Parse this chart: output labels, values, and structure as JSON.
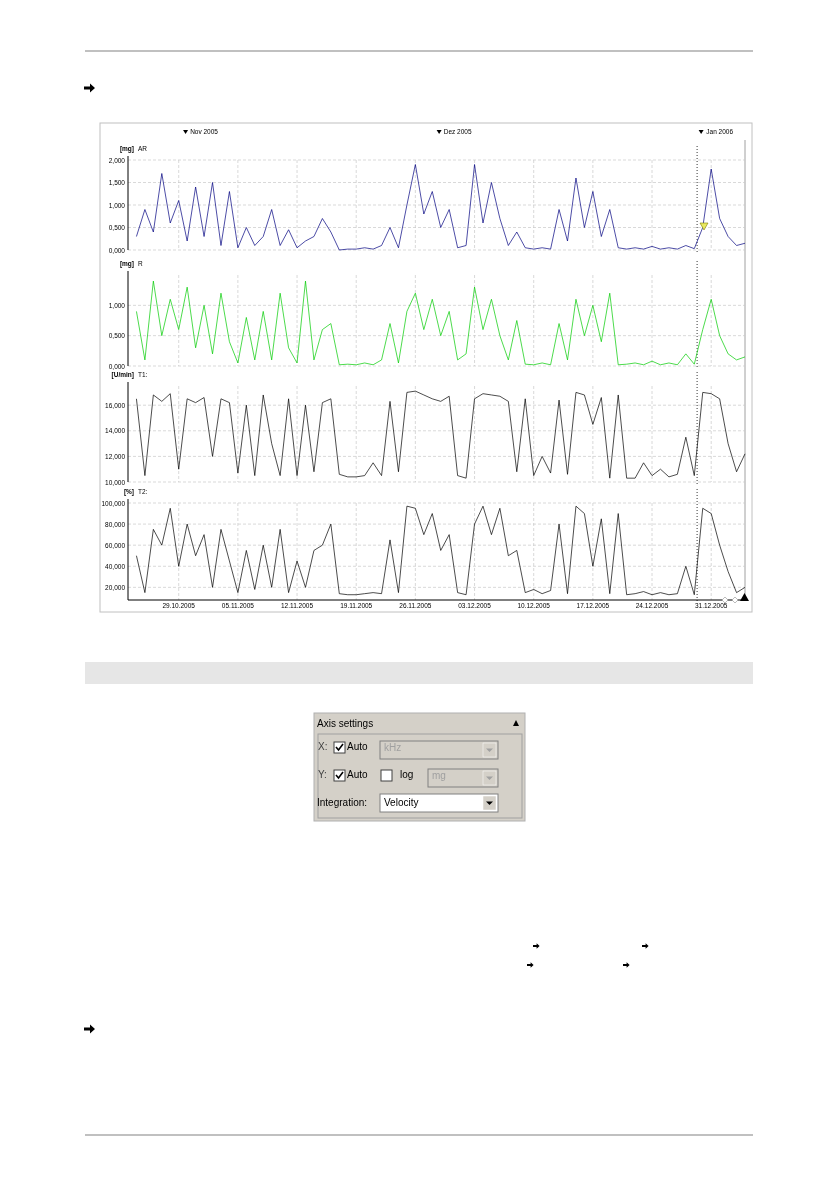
{
  "chart_data": [
    {
      "type": "line",
      "title": "AR",
      "ylabel": "[mg]",
      "tick_labels": "y",
      "grid": true,
      "xlim": [
        "2005-10-23",
        "2006-01-04"
      ],
      "xticks": [
        {
          "value": "2005-10-29",
          "label": null
        },
        {
          "value": "2005-11-05",
          "label": null
        },
        {
          "value": "2005-11-12",
          "label": null
        },
        {
          "value": "2005-11-19",
          "label": null
        },
        {
          "value": "2005-11-26",
          "label": null
        },
        {
          "value": "2005-12-03",
          "label": null
        },
        {
          "value": "2005-12-10",
          "label": null
        },
        {
          "value": "2005-12-17",
          "label": null
        },
        {
          "value": "2005-12-24",
          "label": null
        },
        {
          "value": "2005-12-31",
          "label": null
        }
      ],
      "x2lim": [
        "2005-10-23",
        "2006-01-04"
      ],
      "x2ticks": [
        {
          "value": "2005-11-01",
          "label": "Nov 2005"
        },
        {
          "value": "2005-12-01",
          "label": "Dez 2005"
        },
        {
          "value": "2006-01-01",
          "label": "Jan 2006"
        }
      ],
      "ylim": [
        0,
        2
      ],
      "yticks": [
        {
          "value": 0,
          "label": "0,000"
        },
        {
          "value": 0.5,
          "label": "0,500"
        },
        {
          "value": 1,
          "label": "1,000"
        },
        {
          "value": 1.5,
          "label": "1,500"
        },
        {
          "value": 2,
          "label": "2,000"
        }
      ],
      "ref_lines": [
        {
          "axis": "x",
          "value": "2005-12-29T08:00",
          "color": "#000000",
          "line_style": "dotted"
        }
      ],
      "x": [
        "2005-10-24",
        "2005-10-25",
        "2005-10-26",
        "2005-10-27",
        "2005-10-28",
        "2005-10-29",
        "2005-10-30",
        "2005-10-31",
        "2005-11-01",
        "2005-11-02",
        "2005-11-03",
        "2005-11-04",
        "2005-11-05",
        "2005-11-06",
        "2005-11-07",
        "2005-11-08",
        "2005-11-09",
        "2005-11-10",
        "2005-11-11",
        "2005-11-12",
        "2005-11-13",
        "2005-11-14",
        "2005-11-15",
        "2005-11-16",
        "2005-11-17",
        "2005-11-18",
        "2005-11-19",
        "2005-11-20",
        "2005-11-21",
        "2005-11-22",
        "2005-11-23",
        "2005-11-24",
        "2005-11-25",
        "2005-11-26",
        "2005-11-27",
        "2005-11-28",
        "2005-11-29",
        "2005-11-30",
        "2005-12-01",
        "2005-12-02",
        "2005-12-03",
        "2005-12-04",
        "2005-12-05",
        "2005-12-06",
        "2005-12-07",
        "2005-12-08",
        "2005-12-09",
        "2005-12-10",
        "2005-12-11",
        "2005-12-12",
        "2005-12-13",
        "2005-12-14",
        "2005-12-15",
        "2005-12-16",
        "2005-12-17",
        "2005-12-18",
        "2005-12-19",
        "2005-12-20",
        "2005-12-21",
        "2005-12-22",
        "2005-12-23",
        "2005-12-24",
        "2005-12-25",
        "2005-12-26",
        "2005-12-27",
        "2005-12-28",
        "2005-12-29",
        "2005-12-30",
        "2005-12-31",
        "2006-01-01",
        "2006-01-02",
        "2006-01-03",
        "2006-01-04"
      ],
      "series": [
        {
          "color": "#000080",
          "values": [
            0.3,
            0.9,
            0.4,
            1.7,
            0.6,
            1.1,
            0.2,
            1.4,
            0.3,
            1.5,
            0.1,
            1.3,
            0.05,
            0.5,
            0.1,
            0.3,
            0.9,
            0.1,
            0.45,
            0.05,
            0.2,
            0.3,
            0.7,
            0.4,
            0.0,
            0.02,
            0.02,
            0.05,
            0.02,
            0.1,
            0.5,
            0.05,
            1.0,
            1.9,
            0.8,
            1.3,
            0.5,
            0.9,
            0.05,
            0.1,
            1.9,
            0.6,
            1.5,
            0.7,
            0.1,
            0.4,
            0.05,
            0.02,
            0.05,
            0.02,
            0.9,
            0.2,
            1.6,
            0.5,
            1.3,
            0.3,
            0.9,
            0.05,
            0.02,
            0.05,
            0.02,
            0.08,
            0.02,
            0.05,
            0.02,
            0.1,
            0.03,
            0.5,
            1.8,
            0.7,
            0.3,
            0.1,
            0.15
          ]
        }
      ]
    },
    {
      "type": "line",
      "title": "R",
      "ylabel": "[mg]",
      "tick_labels": "y",
      "grid": true,
      "xlim": [
        "2005-10-23",
        "2006-01-04"
      ],
      "xticks": [
        {
          "value": "2005-10-29",
          "label": null
        },
        {
          "value": "2005-11-05",
          "label": null
        },
        {
          "value": "2005-11-12",
          "label": null
        },
        {
          "value": "2005-11-19",
          "label": null
        },
        {
          "value": "2005-11-26",
          "label": null
        },
        {
          "value": "2005-12-03",
          "label": null
        },
        {
          "value": "2005-12-10",
          "label": null
        },
        {
          "value": "2005-12-17",
          "label": null
        },
        {
          "value": "2005-12-24",
          "label": null
        },
        {
          "value": "2005-12-31",
          "label": null
        }
      ],
      "ylim": [
        0,
        1.5
      ],
      "yticks": [
        {
          "value": 0,
          "label": "0,000"
        },
        {
          "value": 0.5,
          "label": "0,500"
        },
        {
          "value": 1,
          "label": "1,000"
        }
      ],
      "ref_lines": [
        {
          "axis": "x",
          "value": "2005-12-29T08:00",
          "color": "#000000",
          "line_style": "dotted"
        }
      ],
      "x": [
        "2005-10-24",
        "2005-10-25",
        "2005-10-26",
        "2005-10-27",
        "2005-10-28",
        "2005-10-29",
        "2005-10-30",
        "2005-10-31",
        "2005-11-01",
        "2005-11-02",
        "2005-11-03",
        "2005-11-04",
        "2005-11-05",
        "2005-11-06",
        "2005-11-07",
        "2005-11-08",
        "2005-11-09",
        "2005-11-10",
        "2005-11-11",
        "2005-11-12",
        "2005-11-13",
        "2005-11-14",
        "2005-11-15",
        "2005-11-16",
        "2005-11-17",
        "2005-11-18",
        "2005-11-19",
        "2005-11-20",
        "2005-11-21",
        "2005-11-22",
        "2005-11-23",
        "2005-11-24",
        "2005-11-25",
        "2005-11-26",
        "2005-11-27",
        "2005-11-28",
        "2005-11-29",
        "2005-11-30",
        "2005-12-01",
        "2005-12-02",
        "2005-12-03",
        "2005-12-04",
        "2005-12-05",
        "2005-12-06",
        "2005-12-07",
        "2005-12-08",
        "2005-12-09",
        "2005-12-10",
        "2005-12-11",
        "2005-12-12",
        "2005-12-13",
        "2005-12-14",
        "2005-12-15",
        "2005-12-16",
        "2005-12-17",
        "2005-12-18",
        "2005-12-19",
        "2005-12-20",
        "2005-12-21",
        "2005-12-22",
        "2005-12-23",
        "2005-12-24",
        "2005-12-25",
        "2005-12-26",
        "2005-12-27",
        "2005-12-28",
        "2005-12-29",
        "2005-12-30",
        "2005-12-31",
        "2006-01-01",
        "2006-01-02",
        "2006-01-03",
        "2006-01-04"
      ],
      "series": [
        {
          "color": "#00cc00",
          "values": [
            0.9,
            0.1,
            1.4,
            0.5,
            1.1,
            0.6,
            1.3,
            0.3,
            1.0,
            0.2,
            1.2,
            0.4,
            0.05,
            0.8,
            0.1,
            0.9,
            0.1,
            1.2,
            0.3,
            0.05,
            1.4,
            0.1,
            0.6,
            0.7,
            0.02,
            0.03,
            0.02,
            0.05,
            0.02,
            0.1,
            0.7,
            0.05,
            0.9,
            1.2,
            0.6,
            1.1,
            0.5,
            0.9,
            0.1,
            0.2,
            1.3,
            0.6,
            1.1,
            0.5,
            0.1,
            0.75,
            0.03,
            0.02,
            0.05,
            0.02,
            0.7,
            0.1,
            1.1,
            0.5,
            1.0,
            0.4,
            1.2,
            0.02,
            0.03,
            0.05,
            0.02,
            0.08,
            0.02,
            0.05,
            0.02,
            0.2,
            0.03,
            0.6,
            1.1,
            0.5,
            0.2,
            0.1,
            0.15
          ]
        }
      ]
    },
    {
      "type": "line",
      "title": "T1:",
      "ylabel": "[U/min]",
      "tick_labels": "y",
      "grid": true,
      "xlim": [
        "2005-10-23",
        "2006-01-04"
      ],
      "xticks": [
        {
          "value": "2005-10-29",
          "label": null
        },
        {
          "value": "2005-11-05",
          "label": null
        },
        {
          "value": "2005-11-12",
          "label": null
        },
        {
          "value": "2005-11-19",
          "label": null
        },
        {
          "value": "2005-11-26",
          "label": null
        },
        {
          "value": "2005-12-03",
          "label": null
        },
        {
          "value": "2005-12-10",
          "label": null
        },
        {
          "value": "2005-12-17",
          "label": null
        },
        {
          "value": "2005-12-24",
          "label": null
        },
        {
          "value": "2005-12-31",
          "label": null
        }
      ],
      "ylim": [
        10,
        17.5
      ],
      "yticks": [
        {
          "value": 10,
          "label": "10,000"
        },
        {
          "value": 12,
          "label": "12,000"
        },
        {
          "value": 14,
          "label": "14,000"
        },
        {
          "value": 16,
          "label": "16,000"
        }
      ],
      "ref_lines": [
        {
          "axis": "x",
          "value": "2005-12-29T08:00",
          "color": "#000000",
          "line_style": "dotted"
        }
      ],
      "x": [
        "2005-10-24",
        "2005-10-25",
        "2005-10-26",
        "2005-10-27",
        "2005-10-28",
        "2005-10-29",
        "2005-10-30",
        "2005-10-31",
        "2005-11-01",
        "2005-11-02",
        "2005-11-03",
        "2005-11-04",
        "2005-11-05",
        "2005-11-06",
        "2005-11-07",
        "2005-11-08",
        "2005-11-09",
        "2005-11-10",
        "2005-11-11",
        "2005-11-12",
        "2005-11-13",
        "2005-11-14",
        "2005-11-15",
        "2005-11-16",
        "2005-11-17",
        "2005-11-18",
        "2005-11-19",
        "2005-11-20",
        "2005-11-21",
        "2005-11-22",
        "2005-11-23",
        "2005-11-24",
        "2005-11-25",
        "2005-11-26",
        "2005-11-27",
        "2005-11-28",
        "2005-11-29",
        "2005-11-30",
        "2005-12-01",
        "2005-12-02",
        "2005-12-03",
        "2005-12-04",
        "2005-12-05",
        "2005-12-06",
        "2005-12-07",
        "2005-12-08",
        "2005-12-09",
        "2005-12-10",
        "2005-12-11",
        "2005-12-12",
        "2005-12-13",
        "2005-12-14",
        "2005-12-15",
        "2005-12-16",
        "2005-12-17",
        "2005-12-18",
        "2005-12-19",
        "2005-12-20",
        "2005-12-21",
        "2005-12-22",
        "2005-12-23",
        "2005-12-24",
        "2005-12-25",
        "2005-12-26",
        "2005-12-27",
        "2005-12-28",
        "2005-12-29",
        "2005-12-30",
        "2005-12-31",
        "2006-01-01",
        "2006-01-02",
        "2006-01-03",
        "2006-01-04"
      ],
      "series": [
        {
          "color": "#000000",
          "values": [
            16.5,
            10.5,
            16.8,
            16.3,
            16.9,
            11,
            16.5,
            16.2,
            16.6,
            12,
            16.5,
            16.2,
            10.7,
            16,
            10.5,
            16.8,
            13,
            10.5,
            16.5,
            10.5,
            16,
            10.8,
            16.2,
            16.5,
            10.6,
            10.4,
            10.4,
            10.5,
            11.5,
            10.5,
            16.3,
            10.8,
            17,
            17.1,
            16.8,
            16.5,
            16.3,
            16.7,
            10.5,
            10.3,
            16.5,
            16.9,
            16.8,
            16.7,
            16.3,
            10.8,
            16.5,
            10.5,
            12,
            10.7,
            16.4,
            10.6,
            17,
            16.8,
            14.5,
            16.6,
            10.3,
            16.8,
            10.3,
            10.3,
            11.5,
            10.5,
            11,
            10.4,
            10.6,
            13.5,
            10.5,
            17,
            16.9,
            16.5,
            13,
            10.8,
            12.2
          ]
        }
      ]
    },
    {
      "type": "line",
      "title": "T2:",
      "ylabel": "[%]",
      "grid": true,
      "xlim": [
        "2005-10-23",
        "2006-01-04"
      ],
      "xticks": [
        {
          "value": "2005-10-29",
          "label": "29.10.2005"
        },
        {
          "value": "2005-11-05",
          "label": "05.11.2005"
        },
        {
          "value": "2005-11-12",
          "label": "12.11.2005"
        },
        {
          "value": "2005-11-19",
          "label": "19.11.2005"
        },
        {
          "value": "2005-11-26",
          "label": "26.11.2005"
        },
        {
          "value": "2005-12-03",
          "label": "03.12.2005"
        },
        {
          "value": "2005-12-10",
          "label": "10.12.2005"
        },
        {
          "value": "2005-12-17",
          "label": "17.12.2005"
        },
        {
          "value": "2005-12-24",
          "label": "24.12.2005"
        },
        {
          "value": "2005-12-31",
          "label": "31.12.2005"
        }
      ],
      "ylim": [
        8,
        100
      ],
      "yticks": [
        {
          "value": 20,
          "label": "20,000"
        },
        {
          "value": 40,
          "label": "40,000"
        },
        {
          "value": 60,
          "label": "60,000"
        },
        {
          "value": 80,
          "label": "80,000"
        },
        {
          "value": 100,
          "label": "100,000"
        }
      ],
      "ref_lines": [
        {
          "axis": "x",
          "value": "2005-12-29T08:00",
          "color": "#000000",
          "line_style": "dotted"
        }
      ],
      "x": [
        "2005-10-24",
        "2005-10-25",
        "2005-10-26",
        "2005-10-27",
        "2005-10-28",
        "2005-10-29",
        "2005-10-30",
        "2005-10-31",
        "2005-11-01",
        "2005-11-02",
        "2005-11-03",
        "2005-11-04",
        "2005-11-05",
        "2005-11-06",
        "2005-11-07",
        "2005-11-08",
        "2005-11-09",
        "2005-11-10",
        "2005-11-11",
        "2005-11-12",
        "2005-11-13",
        "2005-11-14",
        "2005-11-15",
        "2005-11-16",
        "2005-11-17",
        "2005-11-18",
        "2005-11-19",
        "2005-11-20",
        "2005-11-21",
        "2005-11-22",
        "2005-11-23",
        "2005-11-24",
        "2005-11-25",
        "2005-11-26",
        "2005-11-27",
        "2005-11-28",
        "2005-11-29",
        "2005-11-30",
        "2005-12-01",
        "2005-12-02",
        "2005-12-03",
        "2005-12-04",
        "2005-12-05",
        "2005-12-06",
        "2005-12-07",
        "2005-12-08",
        "2005-12-09",
        "2005-12-10",
        "2005-12-11",
        "2005-12-12",
        "2005-12-13",
        "2005-12-14",
        "2005-12-15",
        "2005-12-16",
        "2005-12-17",
        "2005-12-18",
        "2005-12-19",
        "2005-12-20",
        "2005-12-21",
        "2005-12-22",
        "2005-12-23",
        "2005-12-24",
        "2005-12-25",
        "2005-12-26",
        "2005-12-27",
        "2005-12-28",
        "2005-12-29",
        "2005-12-30",
        "2005-12-31",
        "2006-01-01",
        "2006-01-02",
        "2006-01-03",
        "2006-01-04"
      ],
      "series": [
        {
          "color": "#000000",
          "values": [
            50,
            15,
            75,
            60,
            95,
            40,
            80,
            50,
            70,
            20,
            75,
            45,
            15,
            55,
            18,
            60,
            20,
            75,
            15,
            45,
            20,
            55,
            60,
            80,
            14,
            13,
            13,
            14,
            15,
            14,
            65,
            15,
            97,
            95,
            70,
            90,
            55,
            70,
            15,
            13,
            80,
            97,
            70,
            95,
            50,
            55,
            15,
            18,
            14,
            17,
            80,
            14,
            97,
            90,
            40,
            85,
            14,
            90,
            13,
            14,
            16,
            13,
            15,
            13,
            14,
            40,
            13,
            95,
            90,
            60,
            35,
            15,
            20
          ]
        }
      ]
    },
    {
      "type": "other",
      "title": "Axis settings",
      "annotations": [
        "X:",
        "Auto",
        "kHz",
        "Y:",
        "Auto",
        "log",
        "mg",
        "Integration:",
        "Velocity"
      ]
    }
  ]
}
